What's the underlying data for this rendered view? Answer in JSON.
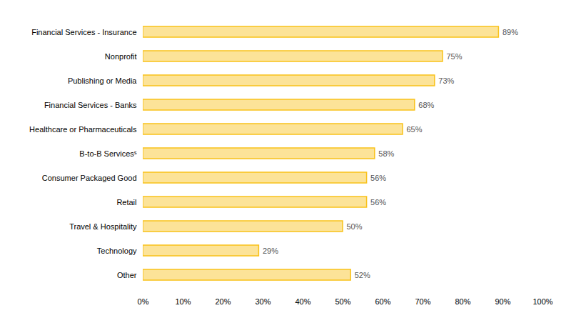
{
  "chart_data": {
    "type": "bar",
    "orientation": "horizontal",
    "categories": [
      "Financial Services - Insurance",
      "Nonprofit",
      "Publishing or Media",
      "Financial Services - Banks",
      "Healthcare or Pharmaceuticals",
      "B-to-B Servicesˢ",
      "Consumer Packaged Good",
      "Retail",
      "Travel & Hospitality",
      "Technology",
      "Other"
    ],
    "values": [
      89,
      75,
      73,
      68,
      65,
      58,
      56,
      56,
      50,
      29,
      52
    ],
    "value_labels": [
      "89%",
      "75%",
      "73%",
      "68%",
      "65%",
      "58%",
      "56%",
      "56%",
      "50%",
      "29%",
      "52%"
    ],
    "data_labels": true,
    "color": "#F9C21A",
    "xlim": [
      0,
      100
    ],
    "xticks": [
      {
        "value": 0,
        "label": "0%"
      },
      {
        "value": 10,
        "label": "10%"
      },
      {
        "value": 20,
        "label": "20%"
      },
      {
        "value": 30,
        "label": "30%"
      },
      {
        "value": 40,
        "label": "40%"
      },
      {
        "value": 50,
        "label": "50%"
      },
      {
        "value": 60,
        "label": "60%"
      },
      {
        "value": 70,
        "label": "70%"
      },
      {
        "value": 80,
        "label": "80%"
      },
      {
        "value": 90,
        "label": "90%"
      },
      {
        "value": 100,
        "label": "100%"
      }
    ],
    "grid": false
  }
}
